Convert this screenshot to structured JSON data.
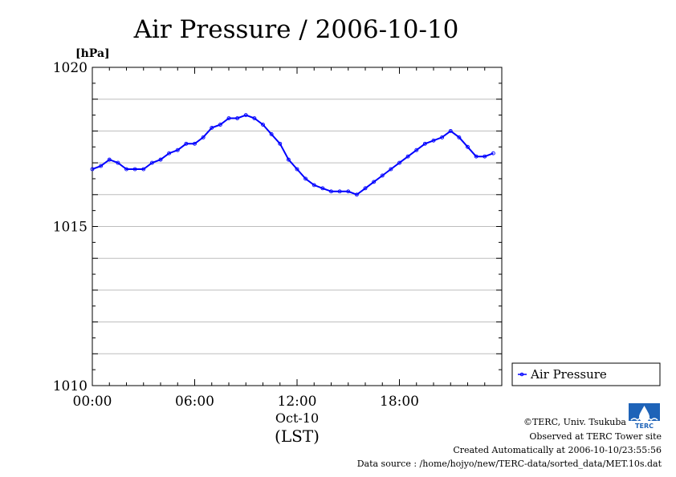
{
  "chart_data": {
    "type": "line",
    "title": "Air Pressure / 2006-10-10",
    "ylabel": "[hPa]",
    "xlabel_date": "Oct-10",
    "xlabel_unit": "(LST)",
    "ylim": [
      1010,
      1020
    ],
    "xlim": [
      0,
      24
    ],
    "y_ticks": [
      1010,
      1015,
      1020
    ],
    "x_tick_values": [
      0,
      6,
      12,
      18
    ],
    "x_tick_labels": [
      "00:00",
      "06:00",
      "12:00",
      "18:00"
    ],
    "grid": true,
    "legend_position": "right",
    "series": [
      {
        "name": "Air Pressure",
        "color": "#0000ff",
        "x": [
          0,
          0.5,
          1,
          1.5,
          2,
          2.5,
          3,
          3.5,
          4,
          4.5,
          5,
          5.5,
          6,
          6.5,
          7,
          7.5,
          8,
          8.5,
          9,
          9.5,
          10,
          10.5,
          11,
          11.5,
          12,
          12.5,
          13,
          13.5,
          14,
          14.5,
          15,
          15.5,
          16,
          16.5,
          17,
          17.5,
          18,
          18.5,
          19,
          19.5,
          20,
          20.5,
          21,
          21.5,
          22,
          22.5,
          23,
          23.5
        ],
        "y": [
          1016.8,
          1016.9,
          1017.1,
          1017.0,
          1016.8,
          1016.8,
          1016.8,
          1017.0,
          1017.1,
          1017.3,
          1017.4,
          1017.6,
          1017.6,
          1017.8,
          1018.1,
          1018.2,
          1018.4,
          1018.4,
          1018.5,
          1018.4,
          1018.2,
          1017.9,
          1017.6,
          1017.1,
          1016.8,
          1016.5,
          1016.3,
          1016.2,
          1016.1,
          1016.1,
          1016.1,
          1016.0,
          1016.2,
          1016.4,
          1016.6,
          1016.8,
          1017.0,
          1017.2,
          1017.4,
          1017.6,
          1017.7,
          1017.8,
          1018.0,
          1017.8,
          1017.5,
          1017.2,
          1017.2,
          1017.3
        ]
      }
    ]
  },
  "footer": {
    "copyright": "©TERC, Univ. Tsukuba",
    "observed": "Observed at TERC Tower site",
    "created": "Created Automatically at 2006-10-10/23:55:56",
    "source": "Data source : /home/hojyo/new/TERC-data/sorted_data/MET.10s.dat",
    "logo_text": "TERC"
  }
}
